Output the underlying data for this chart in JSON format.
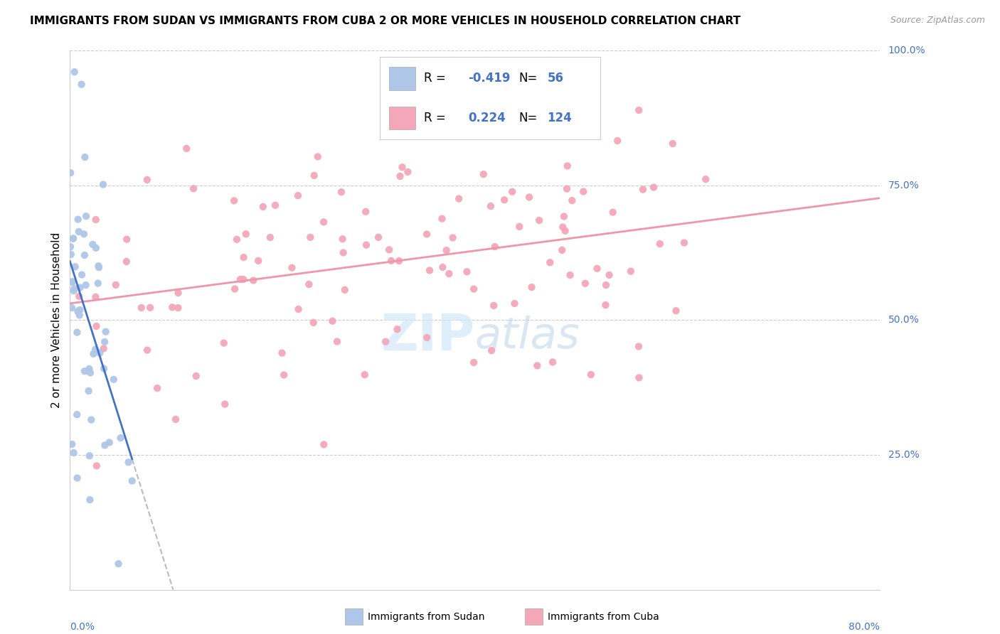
{
  "title": "IMMIGRANTS FROM SUDAN VS IMMIGRANTS FROM CUBA 2 OR MORE VEHICLES IN HOUSEHOLD CORRELATION CHART",
  "source": "Source: ZipAtlas.com",
  "xmin": 0.0,
  "xmax": 80.0,
  "ymin": 0.0,
  "ymax": 100.0,
  "legend_sudan_R": "-0.419",
  "legend_sudan_N": "56",
  "legend_cuba_R": "0.224",
  "legend_cuba_N": "124",
  "sudan_color": "#aec6e8",
  "cuba_color": "#f4a7b9",
  "sudan_line_color": "#4472c4",
  "cuba_line_color": "#f096aa",
  "dashed_line_color": "#bbbbbb",
  "watermark_color": "#d0e8f8",
  "grid_color": "#cccccc",
  "right_label_color": "#4472c4",
  "title_fontsize": 11,
  "source_fontsize": 9,
  "axis_label_fontsize": 11,
  "tick_label_fontsize": 10,
  "legend_fontsize": 12,
  "watermark_fontsize": 52
}
